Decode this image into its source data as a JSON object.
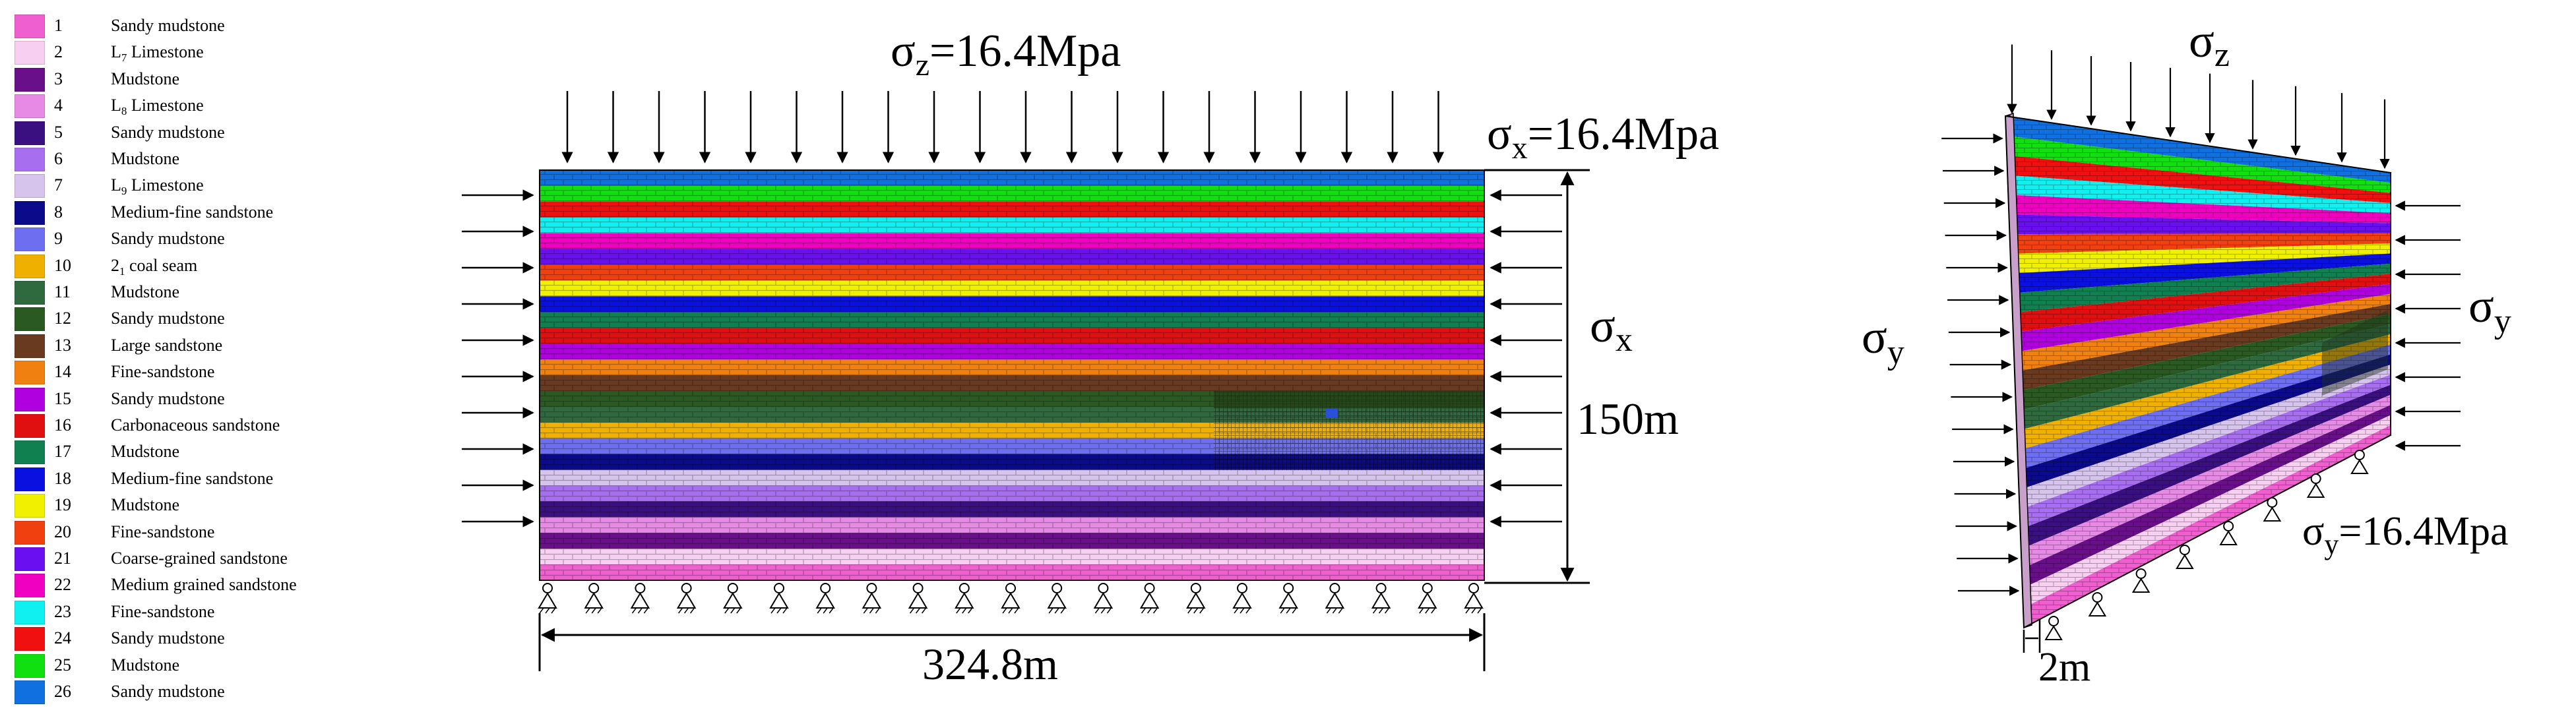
{
  "legend": [
    {
      "num": "1",
      "pre": "Sandy mudstone",
      "sub": "",
      "post": "",
      "color": "#f05fd0"
    },
    {
      "num": "2",
      "pre": "L",
      "sub": "7",
      "post": " Limestone",
      "color": "#f6cff1"
    },
    {
      "num": "3",
      "pre": "Mudstone",
      "sub": "",
      "post": "",
      "color": "#6a0f8a"
    },
    {
      "num": "4",
      "pre": "L",
      "sub": "8",
      "post": " Limestone",
      "color": "#e68ae6"
    },
    {
      "num": "5",
      "pre": "Sandy mudstone",
      "sub": "",
      "post": "",
      "color": "#3a1080"
    },
    {
      "num": "6",
      "pre": "Mudstone",
      "sub": "",
      "post": "",
      "color": "#a86ef0"
    },
    {
      "num": "7",
      "pre": "L",
      "sub": "9",
      "post": " Limestone",
      "color": "#d6c4ec"
    },
    {
      "num": "8",
      "pre": "Medium-fine sandstone",
      "sub": "",
      "post": "",
      "color": "#0a0a8a"
    },
    {
      "num": "9",
      "pre": "Sandy mudstone",
      "sub": "",
      "post": "",
      "color": "#6e6ef0"
    },
    {
      "num": "10",
      "pre": "2",
      "sub": "1",
      "post": " coal seam",
      "color": "#f0b000"
    },
    {
      "num": "11",
      "pre": "Mudstone",
      "sub": "",
      "post": "",
      "color": "#2e6a3e"
    },
    {
      "num": "12",
      "pre": "Sandy mudstone",
      "sub": "",
      "post": "",
      "color": "#2a5a22"
    },
    {
      "num": "13",
      "pre": "Large sandstone",
      "sub": "",
      "post": "",
      "color": "#6a3a20"
    },
    {
      "num": "14",
      "pre": "Fine-sandstone",
      "sub": "",
      "post": "",
      "color": "#f08010"
    },
    {
      "num": "15",
      "pre": "Sandy mudstone",
      "sub": "",
      "post": "",
      "color": "#b000e0"
    },
    {
      "num": "16",
      "pre": "Carbonaceous sandstone",
      "sub": "",
      "post": "",
      "color": "#e01010"
    },
    {
      "num": "17",
      "pre": "Mudstone",
      "sub": "",
      "post": "",
      "color": "#108050"
    },
    {
      "num": "18",
      "pre": "Medium-fine sandstone",
      "sub": "",
      "post": "",
      "color": "#0a10e0"
    },
    {
      "num": "19",
      "pre": "Mudstone",
      "sub": "",
      "post": "",
      "color": "#f0f000"
    },
    {
      "num": "20",
      "pre": "Fine-sandstone",
      "sub": "",
      "post": "",
      "color": "#f04010"
    },
    {
      "num": "21",
      "pre": "Coarse-grained sandstone",
      "sub": "",
      "post": "",
      "color": "#6a10f0"
    },
    {
      "num": "22",
      "pre": "Medium grained sandstone",
      "sub": "",
      "post": "",
      "color": "#f000c0"
    },
    {
      "num": "23",
      "pre": "Fine-sandstone",
      "sub": "",
      "post": "",
      "color": "#10f0f0"
    },
    {
      "num": "24",
      "pre": "Sandy mudstone",
      "sub": "",
      "post": "",
      "color": "#f01010"
    },
    {
      "num": "25",
      "pre": "Mudstone",
      "sub": "",
      "post": "",
      "color": "#10e010"
    },
    {
      "num": "26",
      "pre": "Sandy mudstone",
      "sub": "",
      "post": "",
      "color": "#1070e0"
    }
  ],
  "section_2d": {
    "top_load": {
      "sym": "σ",
      "sub": "z",
      "rest": "=16.4Mpa"
    },
    "side_load": {
      "sym": "σ",
      "sub": "x",
      "rest": "=16.4Mpa"
    },
    "side_label": {
      "sym": "σ",
      "sub": "x"
    },
    "height_dim": "150m",
    "width_dim": "324.8m"
  },
  "model_3d": {
    "top_label": {
      "sym": "σ",
      "sub": "z"
    },
    "left_label": {
      "sym": "σ",
      "sub": "y"
    },
    "right_label": {
      "sym": "σ",
      "sub": "y"
    },
    "right_load": {
      "sym": "σ",
      "sub": "y",
      "rest": "=16.4Mpa"
    },
    "thickness_dim": "2m"
  },
  "strata_top_to_bottom": [
    "26",
    "25",
    "24",
    "23",
    "22",
    "21",
    "20",
    "19",
    "18",
    "17",
    "16",
    "15",
    "14",
    "13",
    "12",
    "11",
    "10",
    "9",
    "8",
    "7",
    "6",
    "5",
    "4",
    "3",
    "2",
    "1"
  ],
  "colors": {
    "ink": "#000000",
    "overlay_dark": "#1f3a12",
    "overlay_light": "#9a9aa8"
  }
}
